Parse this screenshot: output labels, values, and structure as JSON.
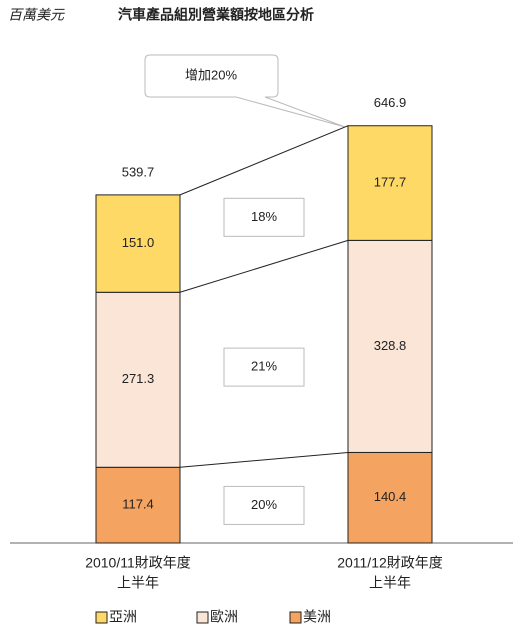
{
  "chart_data": {
    "type": "stacked_bar",
    "unit_label": "百萬美元",
    "title": "汽車產品組別營業額按地區分析",
    "categories": [
      [
        "2010/11財政年度",
        "上半年"
      ],
      [
        "2011/12財政年度",
        "上半年"
      ]
    ],
    "series": [
      {
        "name": "亞洲",
        "color": "#ffd966",
        "values": [
          151.0,
          177.7
        ],
        "value_labels": [
          "151.0",
          "177.7"
        ]
      },
      {
        "name": "歐洲",
        "color": "#fbe5d6",
        "values": [
          271.3,
          328.8
        ],
        "value_labels": [
          "271.3",
          "328.8"
        ]
      },
      {
        "name": "美洲",
        "color": "#f4a460",
        "values": [
          117.4,
          140.4
        ],
        "value_labels": [
          "117.4",
          "140.4"
        ]
      }
    ],
    "totals": [
      539.7,
      646.9
    ],
    "growth_labels": [
      "18%",
      "21%",
      "20%"
    ],
    "callout": "增加20%"
  }
}
